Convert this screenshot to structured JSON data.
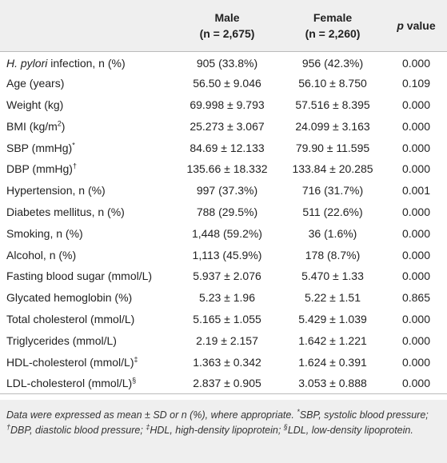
{
  "table": {
    "columns": [
      [],
      [
        {
          "text": "Male"
        },
        {
          "text": "(n = 2,675)"
        }
      ],
      [
        {
          "text": "Female"
        },
        {
          "text": "(n = 2,260)"
        }
      ],
      [
        {
          "text": "p",
          "style": "italic"
        },
        {
          "text": " value"
        }
      ]
    ],
    "rows": [
      [
        [
          {
            "text": "H. pylori",
            "style": "italic"
          },
          {
            "text": " infection, n (%)"
          }
        ],
        "905 (33.8%)",
        "956 (42.3%)",
        "0.000"
      ],
      [
        [
          {
            "text": "Age (years)"
          }
        ],
        "56.50 ± 9.046",
        "56.10 ± 8.750",
        "0.109"
      ],
      [
        [
          {
            "text": "Weight (kg)"
          }
        ],
        "69.998 ± 9.793",
        "57.516 ± 8.395",
        "0.000"
      ],
      [
        [
          {
            "text": "BMI (kg/m"
          },
          {
            "text": "2",
            "style": "sup"
          },
          {
            "text": ")"
          }
        ],
        "25.273 ± 3.067",
        "24.099 ± 3.163",
        "0.000"
      ],
      [
        [
          {
            "text": "SBP (mmHg)"
          },
          {
            "text": "*",
            "style": "sup"
          }
        ],
        "84.69 ± 12.133",
        "79.90 ± 11.595",
        "0.000"
      ],
      [
        [
          {
            "text": "DBP (mmHg)"
          },
          {
            "text": "†",
            "style": "sup"
          }
        ],
        "135.66 ± 18.332",
        "133.84 ± 20.285",
        "0.000"
      ],
      [
        [
          {
            "text": "Hypertension, n (%)"
          }
        ],
        "997 (37.3%)",
        "716 (31.7%)",
        "0.001"
      ],
      [
        [
          {
            "text": "Diabetes mellitus, n (%)"
          }
        ],
        "788 (29.5%)",
        "511 (22.6%)",
        "0.000"
      ],
      [
        [
          {
            "text": "Smoking, n (%)"
          }
        ],
        "1,448 (59.2%)",
        "36 (1.6%)",
        "0.000"
      ],
      [
        [
          {
            "text": "Alcohol, n (%)"
          }
        ],
        "1,113 (45.9%)",
        "178 (8.7%)",
        "0.000"
      ],
      [
        [
          {
            "text": "Fasting blood sugar (mmol/L)"
          }
        ],
        "5.937 ± 2.076",
        "5.470 ± 1.33",
        "0.000"
      ],
      [
        [
          {
            "text": "Glycated hemoglobin (%)"
          }
        ],
        "5.23 ± 1.96",
        "5.22 ± 1.51",
        "0.865"
      ],
      [
        [
          {
            "text": "Total cholesterol (mmol/L)"
          }
        ],
        "5.165 ± 1.055",
        "5.429 ± 1.039",
        "0.000"
      ],
      [
        [
          {
            "text": "Triglycerides (mmol/L)"
          }
        ],
        "2.19 ± 2.157",
        "1.642 ± 1.221",
        "0.000"
      ],
      [
        [
          {
            "text": "HDL-cholesterol (mmol/L)"
          },
          {
            "text": "‡",
            "style": "sup"
          }
        ],
        "1.363 ± 0.342",
        "1.624 ± 0.391",
        "0.000"
      ],
      [
        [
          {
            "text": "LDL-cholesterol (mmol/L)"
          },
          {
            "text": "§",
            "style": "sup"
          }
        ],
        "2.837 ± 0.905",
        "3.053 ± 0.888",
        "0.000"
      ]
    ]
  },
  "footnote": [
    {
      "text": "Data were expressed as mean ± SD or n (%), where appropriate. "
    },
    {
      "text": "*",
      "style": "sup"
    },
    {
      "text": "SBP, systolic blood pressure; "
    },
    {
      "text": "†",
      "style": "sup"
    },
    {
      "text": "DBP, diastolic blood pressure; "
    },
    {
      "text": "‡",
      "style": "sup"
    },
    {
      "text": "HDL, high-density lipoprotein; "
    },
    {
      "text": "§",
      "style": "sup"
    },
    {
      "text": "LDL, low-density lipoprotein."
    }
  ]
}
